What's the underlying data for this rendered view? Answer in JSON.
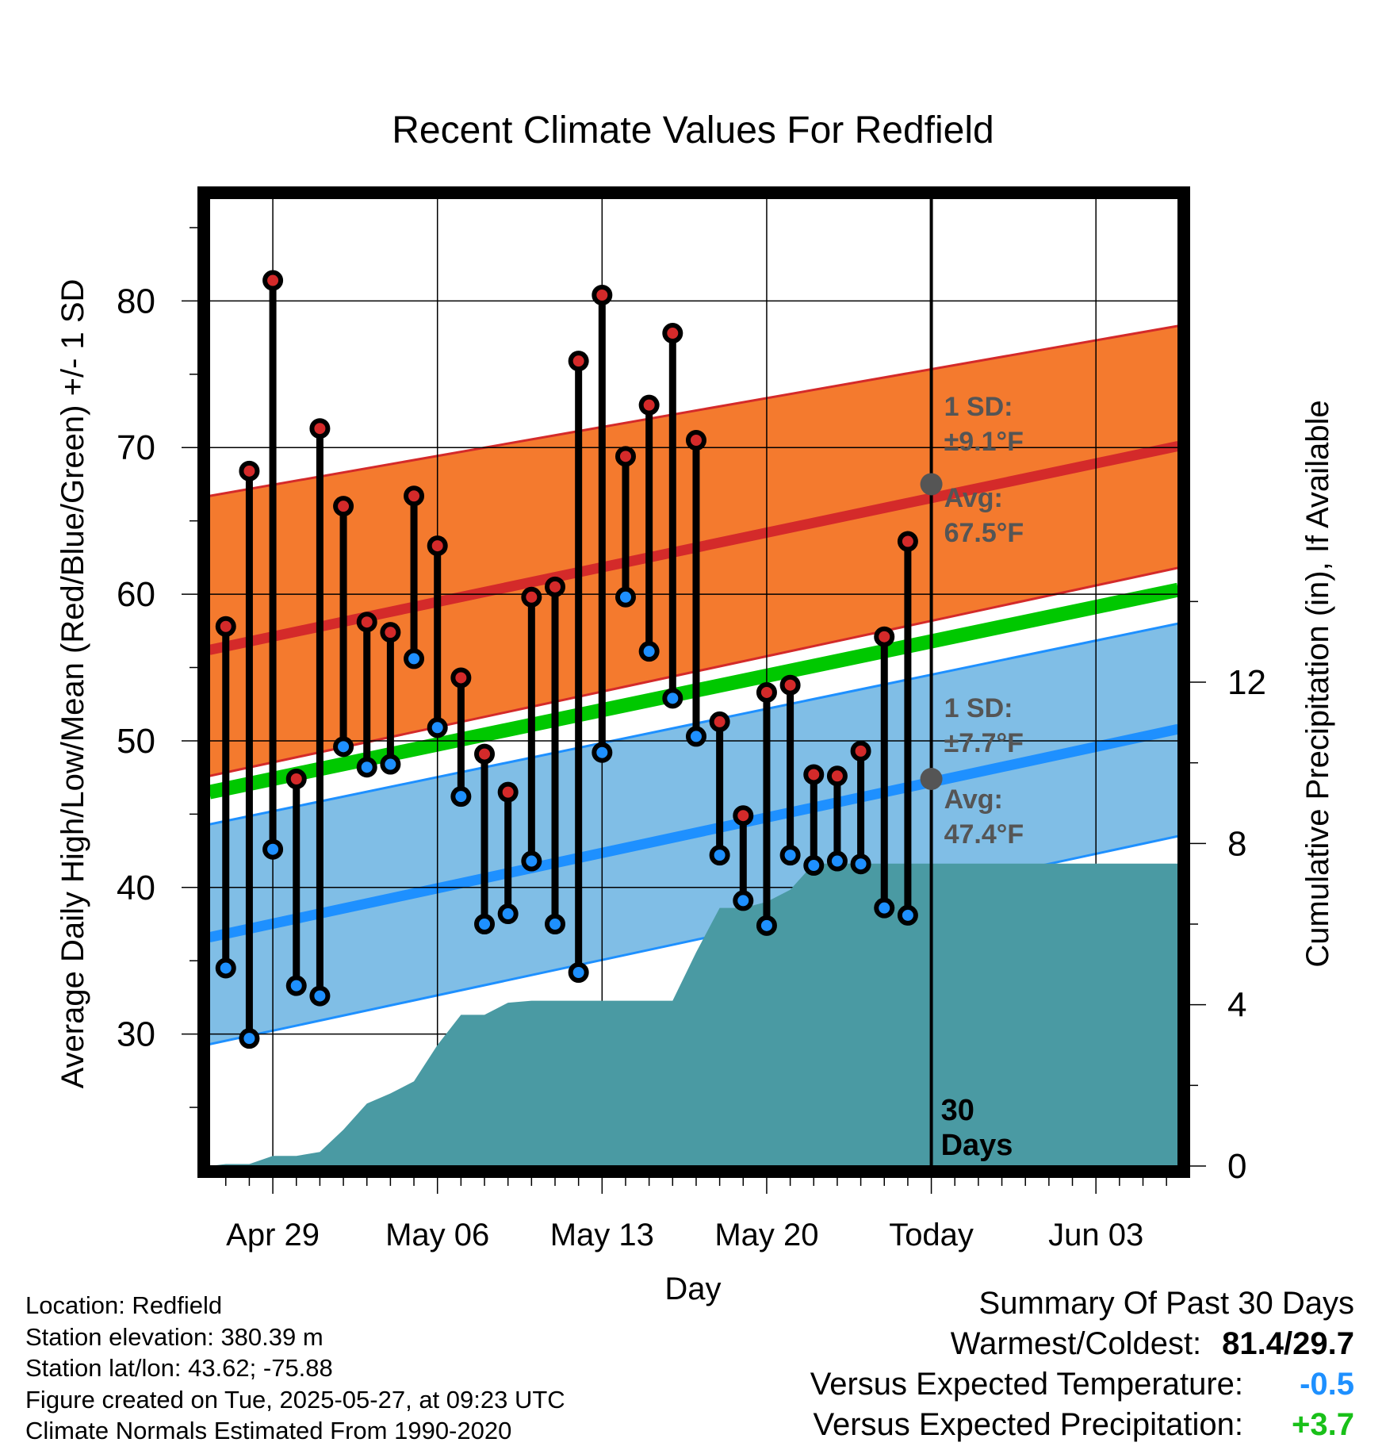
{
  "chart_data": {
    "type": "line",
    "title": "Recent Climate Values For Redfield",
    "xlabel": "Day",
    "ylabel": "Average Daily High/Low/Mean (Red/Blue/Green) +/- 1 SD",
    "y2label": "Cumulative Precipitation (in), If Available",
    "x_tick_labels": [
      "Apr 29",
      "May 06",
      "May 13",
      "May 20",
      "Today",
      "Jun 03"
    ],
    "x_tick_days": [
      2,
      9,
      16,
      23,
      30,
      37
    ],
    "xlim": [
      -0.7,
      40.5
    ],
    "ylim": [
      21,
      87
    ],
    "y_ticks": [
      30,
      40,
      50,
      60,
      70,
      80
    ],
    "y2lim": [
      0,
      24
    ],
    "y2_ticks": [
      0,
      4,
      8,
      12
    ],
    "today_day": 30,
    "today_label": "30\nDays",
    "grid": true,
    "normals": {
      "x": [
        -0.7,
        40.5
      ],
      "high_avg": [
        56.2,
        70.1
      ],
      "high_upper": [
        66.7,
        78.3
      ],
      "high_lower": [
        47.6,
        61.8
      ],
      "low_avg": [
        36.6,
        50.8
      ],
      "low_upper": [
        44.3,
        58.0
      ],
      "low_lower": [
        29.3,
        43.5
      ],
      "mean_avg": [
        46.5,
        60.3
      ]
    },
    "annotations": {
      "high_sd_title": "1 SD:",
      "high_sd_value": "±9.1°F",
      "high_avg_title": "Avg:",
      "high_avg_value": "67.5°F",
      "low_sd_title": "1 SD:",
      "low_sd_value": "±7.7°F",
      "low_avg_title": "Avg:",
      "low_avg_value": "47.4°F",
      "today_high_avg": 67.5,
      "today_low_avg": 47.4
    },
    "days": [
      0,
      1,
      2,
      3,
      4,
      5,
      6,
      7,
      8,
      9,
      10,
      11,
      12,
      13,
      14,
      15,
      16,
      17,
      18,
      19,
      20,
      21,
      22,
      23,
      24,
      25,
      26,
      27,
      28,
      29
    ],
    "daily_high": [
      57.8,
      68.4,
      81.4,
      47.4,
      71.3,
      66.0,
      58.1,
      57.4,
      66.7,
      63.3,
      54.3,
      49.1,
      46.5,
      59.8,
      60.5,
      75.9,
      80.4,
      69.4,
      72.9,
      77.8,
      70.5,
      51.3,
      44.9,
      53.3,
      53.8,
      47.7,
      47.6,
      49.3,
      57.1,
      63.6
    ],
    "daily_low": [
      34.5,
      29.7,
      42.6,
      33.3,
      32.6,
      49.6,
      48.2,
      48.4,
      55.6,
      50.9,
      46.2,
      37.5,
      38.2,
      41.8,
      37.5,
      34.2,
      49.2,
      59.8,
      56.1,
      52.9,
      50.3,
      42.2,
      39.1,
      37.4,
      42.2,
      41.5,
      41.8,
      41.6,
      38.6,
      38.1
    ],
    "precip_x": [
      -0.7,
      0,
      1,
      2,
      3,
      4,
      5,
      6,
      7,
      8,
      9,
      10,
      11,
      12,
      13,
      14,
      15,
      16,
      17,
      18,
      19,
      20,
      21,
      22,
      23,
      24,
      25,
      26,
      27,
      28,
      29,
      30,
      40.5
    ],
    "precip_cum": [
      0,
      0.05,
      0.05,
      0.25,
      0.25,
      0.35,
      0.9,
      1.55,
      1.8,
      2.1,
      3.0,
      3.75,
      3.75,
      4.05,
      4.1,
      4.1,
      4.1,
      4.1,
      4.1,
      4.1,
      4.1,
      5.3,
      6.4,
      6.4,
      6.55,
      6.85,
      7.5,
      7.5,
      7.5,
      7.5,
      7.5,
      7.5,
      7.5
    ],
    "colors": {
      "high_band": "#f47a2e",
      "high_line": "#d42a2a",
      "high_edge": "#d42a2a",
      "low_band": "#80bee6",
      "low_line": "#1e90ff",
      "low_edge": "#1e90ff",
      "mean_line": "#00c800",
      "precip": "#4a9aa3",
      "high_point": "#d42a2a",
      "low_point": "#1e90ff",
      "annotation": "#555555",
      "precip_summary": "#19c019",
      "temp_summary": "#1e90ff"
    }
  },
  "station_info": {
    "location": "Location: Redfield",
    "elevation": "Station elevation: 380.39 m",
    "latlon": "Station lat/lon: 43.62; -75.88",
    "created": "Figure created on Tue, 2025-05-27, at 09:23 UTC",
    "normals": "Climate Normals Estimated From 1990-2020"
  },
  "summary": {
    "title": "Summary Of Past 30 Days",
    "warmest_coldest_label": "Warmest/Coldest:",
    "warmest_coldest_value": "81.4/29.7",
    "temp_label": "Versus Expected Temperature:",
    "temp_value": "-0.5",
    "precip_label": "Versus Expected Precipitation:",
    "precip_value": "+3.7"
  }
}
